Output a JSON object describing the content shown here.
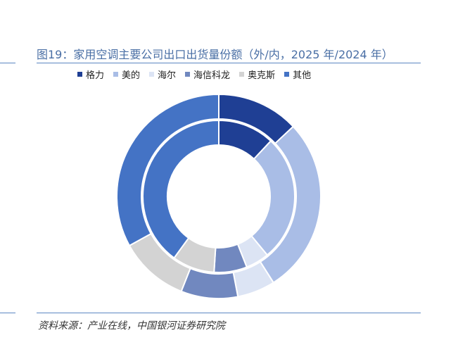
{
  "title": "图19：家用空调主要公司出口出货量份额（外/内，2025 年/2024 年）",
  "source": "资料来源：产业在线，中国银河证券研究院",
  "chart_data": {
    "type": "pie",
    "subtype": "double-donut",
    "categories": [
      "格力",
      "美的",
      "海尔",
      "海信科龙",
      "奥克斯",
      "其他"
    ],
    "colors": [
      "#1f3f94",
      "#a9bde6",
      "#dce4f4",
      "#7188bf",
      "#d3d3d3",
      "#4473c5"
    ],
    "series": [
      {
        "ring": "outer",
        "values": [
          13,
          28,
          6,
          9,
          11,
          33
        ]
      },
      {
        "ring": "inner",
        "values": [
          12,
          27,
          5,
          7,
          9,
          40
        ]
      }
    ],
    "legend_position": "top"
  }
}
